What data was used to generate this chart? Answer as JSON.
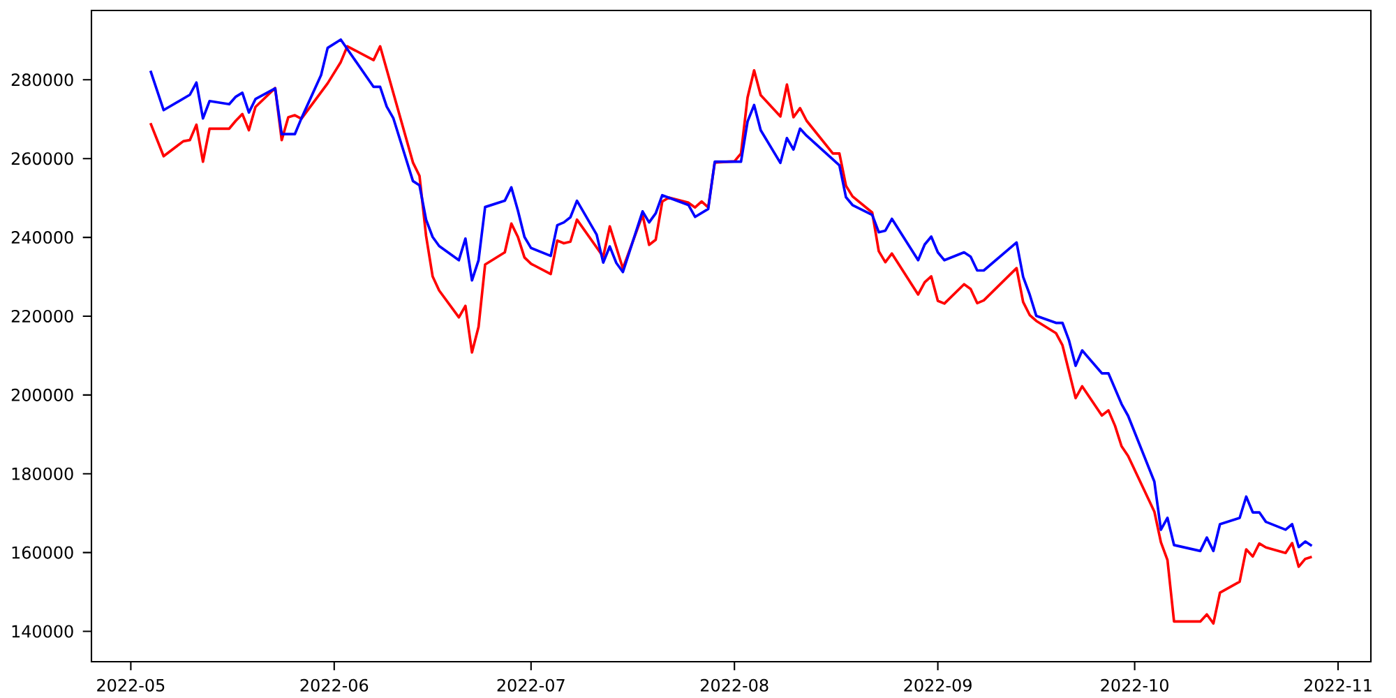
{
  "chart_data": {
    "type": "line",
    "xlim": [
      "2022-04-25",
      "2022-11-06"
    ],
    "ylim": [
      132300,
      297600
    ],
    "xticks": [
      {
        "value": "2022-05-01",
        "label": "2022-05"
      },
      {
        "value": "2022-06-01",
        "label": "2022-06"
      },
      {
        "value": "2022-07-01",
        "label": "2022-07"
      },
      {
        "value": "2022-08-01",
        "label": "2022-08"
      },
      {
        "value": "2022-09-01",
        "label": "2022-09"
      },
      {
        "value": "2022-10-01",
        "label": "2022-10"
      },
      {
        "value": "2022-11-01",
        "label": "2022-11"
      }
    ],
    "yticks": [
      140000,
      160000,
      180000,
      200000,
      220000,
      240000,
      260000,
      280000
    ],
    "series": [
      {
        "color": "#ff0000",
        "x": [
          "2022-05-04",
          "2022-05-06",
          "2022-05-09",
          "2022-05-10",
          "2022-05-11",
          "2022-05-12",
          "2022-05-13",
          "2022-05-16",
          "2022-05-17",
          "2022-05-18",
          "2022-05-19",
          "2022-05-20",
          "2022-05-23",
          "2022-05-24",
          "2022-05-25",
          "2022-05-26",
          "2022-05-27",
          "2022-05-31",
          "2022-06-02",
          "2022-06-03",
          "2022-06-07",
          "2022-06-08",
          "2022-06-13",
          "2022-06-14",
          "2022-06-15",
          "2022-06-16",
          "2022-06-17",
          "2022-06-20",
          "2022-06-21",
          "2022-06-22",
          "2022-06-23",
          "2022-06-24",
          "2022-06-27",
          "2022-06-28",
          "2022-06-29",
          "2022-06-30",
          "2022-07-01",
          "2022-07-04",
          "2022-07-05",
          "2022-07-06",
          "2022-07-07",
          "2022-07-08",
          "2022-07-12",
          "2022-07-13",
          "2022-07-15",
          "2022-07-18",
          "2022-07-19",
          "2022-07-20",
          "2022-07-21",
          "2022-07-22",
          "2022-07-25",
          "2022-07-26",
          "2022-07-27",
          "2022-07-28",
          "2022-07-29",
          "2022-08-01",
          "2022-08-02",
          "2022-08-03",
          "2022-08-04",
          "2022-08-05",
          "2022-08-08",
          "2022-08-09",
          "2022-08-10",
          "2022-08-11",
          "2022-08-12",
          "2022-08-16",
          "2022-08-17",
          "2022-08-18",
          "2022-08-19",
          "2022-08-22",
          "2022-08-23",
          "2022-08-24",
          "2022-08-25",
          "2022-08-29",
          "2022-08-30",
          "2022-08-31",
          "2022-09-01",
          "2022-09-02",
          "2022-09-05",
          "2022-09-06",
          "2022-09-07",
          "2022-09-08",
          "2022-09-13",
          "2022-09-14",
          "2022-09-15",
          "2022-09-16",
          "2022-09-19",
          "2022-09-20",
          "2022-09-22",
          "2022-09-23",
          "2022-09-26",
          "2022-09-27",
          "2022-09-28",
          "2022-09-29",
          "2022-09-30",
          "2022-10-04",
          "2022-10-05",
          "2022-10-06",
          "2022-10-07",
          "2022-10-11",
          "2022-10-12",
          "2022-10-13",
          "2022-10-14",
          "2022-10-17",
          "2022-10-18",
          "2022-10-19",
          "2022-10-20",
          "2022-10-21",
          "2022-10-24",
          "2022-10-25",
          "2022-10-26",
          "2022-10-27",
          "2022-10-28"
        ],
        "values": [
          269000,
          260600,
          264400,
          264700,
          268600,
          259200,
          267600,
          267600,
          269600,
          271300,
          267200,
          273100,
          277900,
          264700,
          270500,
          271000,
          270100,
          279100,
          284500,
          288500,
          285000,
          288500,
          259000,
          255600,
          240400,
          230100,
          226500,
          219700,
          222600,
          210800,
          217300,
          233100,
          236200,
          243500,
          240100,
          234900,
          233300,
          230700,
          239200,
          238500,
          238900,
          244500,
          235100,
          242800,
          232100,
          245700,
          238100,
          239400,
          249100,
          250100,
          248800,
          247600,
          249100,
          247600,
          259000,
          259300,
          261300,
          275500,
          282400,
          276100,
          270700,
          278800,
          270500,
          272800,
          269600,
          261300,
          261300,
          253100,
          250400,
          246300,
          236500,
          233700,
          235900,
          225500,
          228600,
          230100,
          223900,
          223200,
          228100,
          226900,
          223300,
          224000,
          232200,
          223600,
          220300,
          218800,
          215700,
          212600,
          199200,
          202200,
          194800,
          196100,
          192200,
          187000,
          184500,
          170400,
          162600,
          158100,
          142500,
          142500,
          144300,
          142000,
          149800,
          152600,
          160800,
          159000,
          162300,
          161300,
          159900,
          162400,
          156400,
          158400,
          158900
        ]
      },
      {
        "color": "#0000ff",
        "x": [
          "2022-05-04",
          "2022-05-06",
          "2022-05-10",
          "2022-05-11",
          "2022-05-12",
          "2022-05-13",
          "2022-05-16",
          "2022-05-17",
          "2022-05-18",
          "2022-05-19",
          "2022-05-20",
          "2022-05-23",
          "2022-05-24",
          "2022-05-26",
          "2022-05-27",
          "2022-05-30",
          "2022-05-31",
          "2022-06-02",
          "2022-06-07",
          "2022-06-08",
          "2022-06-09",
          "2022-06-10",
          "2022-06-13",
          "2022-06-14",
          "2022-06-15",
          "2022-06-16",
          "2022-06-17",
          "2022-06-20",
          "2022-06-21",
          "2022-06-22",
          "2022-06-23",
          "2022-06-24",
          "2022-06-27",
          "2022-06-28",
          "2022-06-29",
          "2022-06-30",
          "2022-07-01",
          "2022-07-04",
          "2022-07-05",
          "2022-07-06",
          "2022-07-07",
          "2022-07-08",
          "2022-07-11",
          "2022-07-12",
          "2022-07-13",
          "2022-07-14",
          "2022-07-15",
          "2022-07-18",
          "2022-07-19",
          "2022-07-20",
          "2022-07-21",
          "2022-07-25",
          "2022-07-26",
          "2022-07-28",
          "2022-07-29",
          "2022-08-01",
          "2022-08-02",
          "2022-08-03",
          "2022-08-04",
          "2022-08-05",
          "2022-08-08",
          "2022-08-09",
          "2022-08-10",
          "2022-08-11",
          "2022-08-12",
          "2022-08-17",
          "2022-08-18",
          "2022-08-19",
          "2022-08-22",
          "2022-08-23",
          "2022-08-24",
          "2022-08-25",
          "2022-08-29",
          "2022-08-30",
          "2022-08-31",
          "2022-09-01",
          "2022-09-02",
          "2022-09-05",
          "2022-09-06",
          "2022-09-07",
          "2022-09-08",
          "2022-09-13",
          "2022-09-14",
          "2022-09-15",
          "2022-09-16",
          "2022-09-19",
          "2022-09-20",
          "2022-09-21",
          "2022-09-22",
          "2022-09-23",
          "2022-09-26",
          "2022-09-27",
          "2022-09-29",
          "2022-09-30",
          "2022-10-04",
          "2022-10-05",
          "2022-10-06",
          "2022-10-07",
          "2022-10-11",
          "2022-10-12",
          "2022-10-13",
          "2022-10-14",
          "2022-10-17",
          "2022-10-18",
          "2022-10-19",
          "2022-10-20",
          "2022-10-21",
          "2022-10-24",
          "2022-10-25",
          "2022-10-26",
          "2022-10-27",
          "2022-10-28"
        ],
        "values": [
          282300,
          272300,
          276200,
          279300,
          270200,
          274600,
          273800,
          275700,
          276700,
          271700,
          275100,
          277800,
          266200,
          266200,
          270200,
          281200,
          288100,
          290200,
          278200,
          278200,
          273200,
          270300,
          254300,
          253200,
          244500,
          240100,
          237800,
          234200,
          239700,
          229100,
          234200,
          247700,
          249300,
          252700,
          246800,
          240100,
          237300,
          235300,
          243100,
          243800,
          245100,
          249300,
          240700,
          233600,
          237700,
          233500,
          231200,
          246600,
          243800,
          246100,
          250700,
          248200,
          245200,
          247200,
          259200,
          259200,
          259200,
          269400,
          273600,
          267200,
          258900,
          265200,
          262300,
          267600,
          265800,
          258300,
          250200,
          248200,
          245700,
          241300,
          241700,
          244700,
          234200,
          238200,
          240200,
          236200,
          234200,
          236200,
          235100,
          231600,
          231600,
          238700,
          230000,
          225500,
          220100,
          218300,
          218300,
          213800,
          207400,
          211300,
          205500,
          205500,
          197700,
          194700,
          178000,
          165800,
          168800,
          161900,
          160400,
          163800,
          160400,
          167200,
          168800,
          174200,
          170200,
          170200,
          167800,
          165800,
          167200,
          161400,
          162800,
          161700
        ]
      }
    ]
  }
}
